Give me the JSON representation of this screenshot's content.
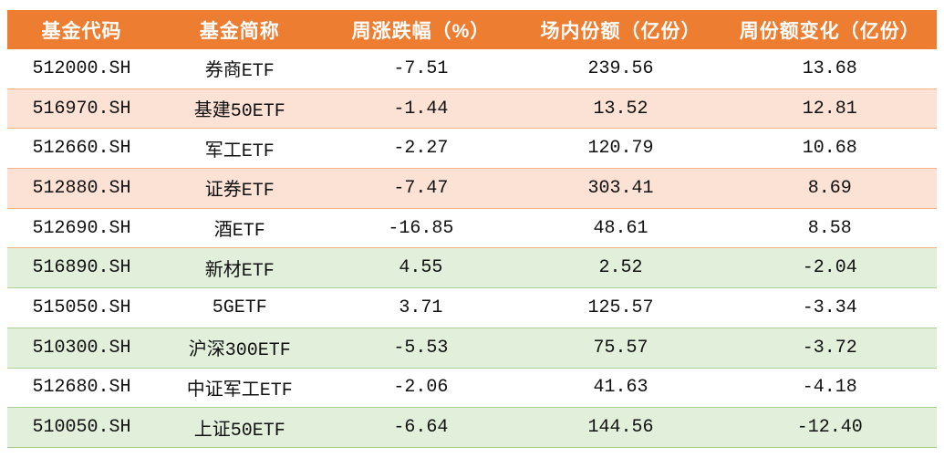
{
  "chart_data": {
    "type": "table",
    "title": "",
    "columns": [
      "基金代码",
      "基金简称",
      "周涨跌幅（%）",
      "场内份额（亿份）",
      "周份额变化（亿份）"
    ],
    "rows": [
      {
        "code": "512000.SH",
        "name": "券商ETF",
        "weekly_change_pct": "-7.51",
        "market_shares_100m": "239.56",
        "weekly_share_change_100m": "13.68"
      },
      {
        "code": "516970.SH",
        "name": "基建50ETF",
        "weekly_change_pct": "-1.44",
        "market_shares_100m": "13.52",
        "weekly_share_change_100m": "12.81"
      },
      {
        "code": "512660.SH",
        "name": "军工ETF",
        "weekly_change_pct": "-2.27",
        "market_shares_100m": "120.79",
        "weekly_share_change_100m": "10.68"
      },
      {
        "code": "512880.SH",
        "name": "证券ETF",
        "weekly_change_pct": "-7.47",
        "market_shares_100m": "303.41",
        "weekly_share_change_100m": "8.69"
      },
      {
        "code": "512690.SH",
        "name": "酒ETF",
        "weekly_change_pct": "-16.85",
        "market_shares_100m": "48.61",
        "weekly_share_change_100m": "8.58"
      },
      {
        "code": "516890.SH",
        "name": "新材ETF",
        "weekly_change_pct": "4.55",
        "market_shares_100m": "2.52",
        "weekly_share_change_100m": "-2.04"
      },
      {
        "code": "515050.SH",
        "name": "5GETF",
        "weekly_change_pct": "3.71",
        "market_shares_100m": "125.57",
        "weekly_share_change_100m": "-3.34"
      },
      {
        "code": "510300.SH",
        "name": "沪深300ETF",
        "weekly_change_pct": "-5.53",
        "market_shares_100m": "75.57",
        "weekly_share_change_100m": "-3.72"
      },
      {
        "code": "512680.SH",
        "name": "中证军工ETF",
        "weekly_change_pct": "-2.06",
        "market_shares_100m": "41.63",
        "weekly_share_change_100m": "-4.18"
      },
      {
        "code": "510050.SH",
        "name": "上证50ETF",
        "weekly_change_pct": "-6.64",
        "market_shares_100m": "144.56",
        "weekly_share_change_100m": "-12.40"
      }
    ],
    "layout_hints": {
      "header_fill": "#ED7D31",
      "positive_share_change_section_fill": "#FBE2D5",
      "positive_share_change_section_border": "#F4B183",
      "negative_share_change_section_fill": "#E2EFDA",
      "negative_share_change_section_border": "#A9D08E",
      "header_text_color": "#FFFFFF",
      "body_text_color": "#111111",
      "alignment": "center"
    }
  }
}
